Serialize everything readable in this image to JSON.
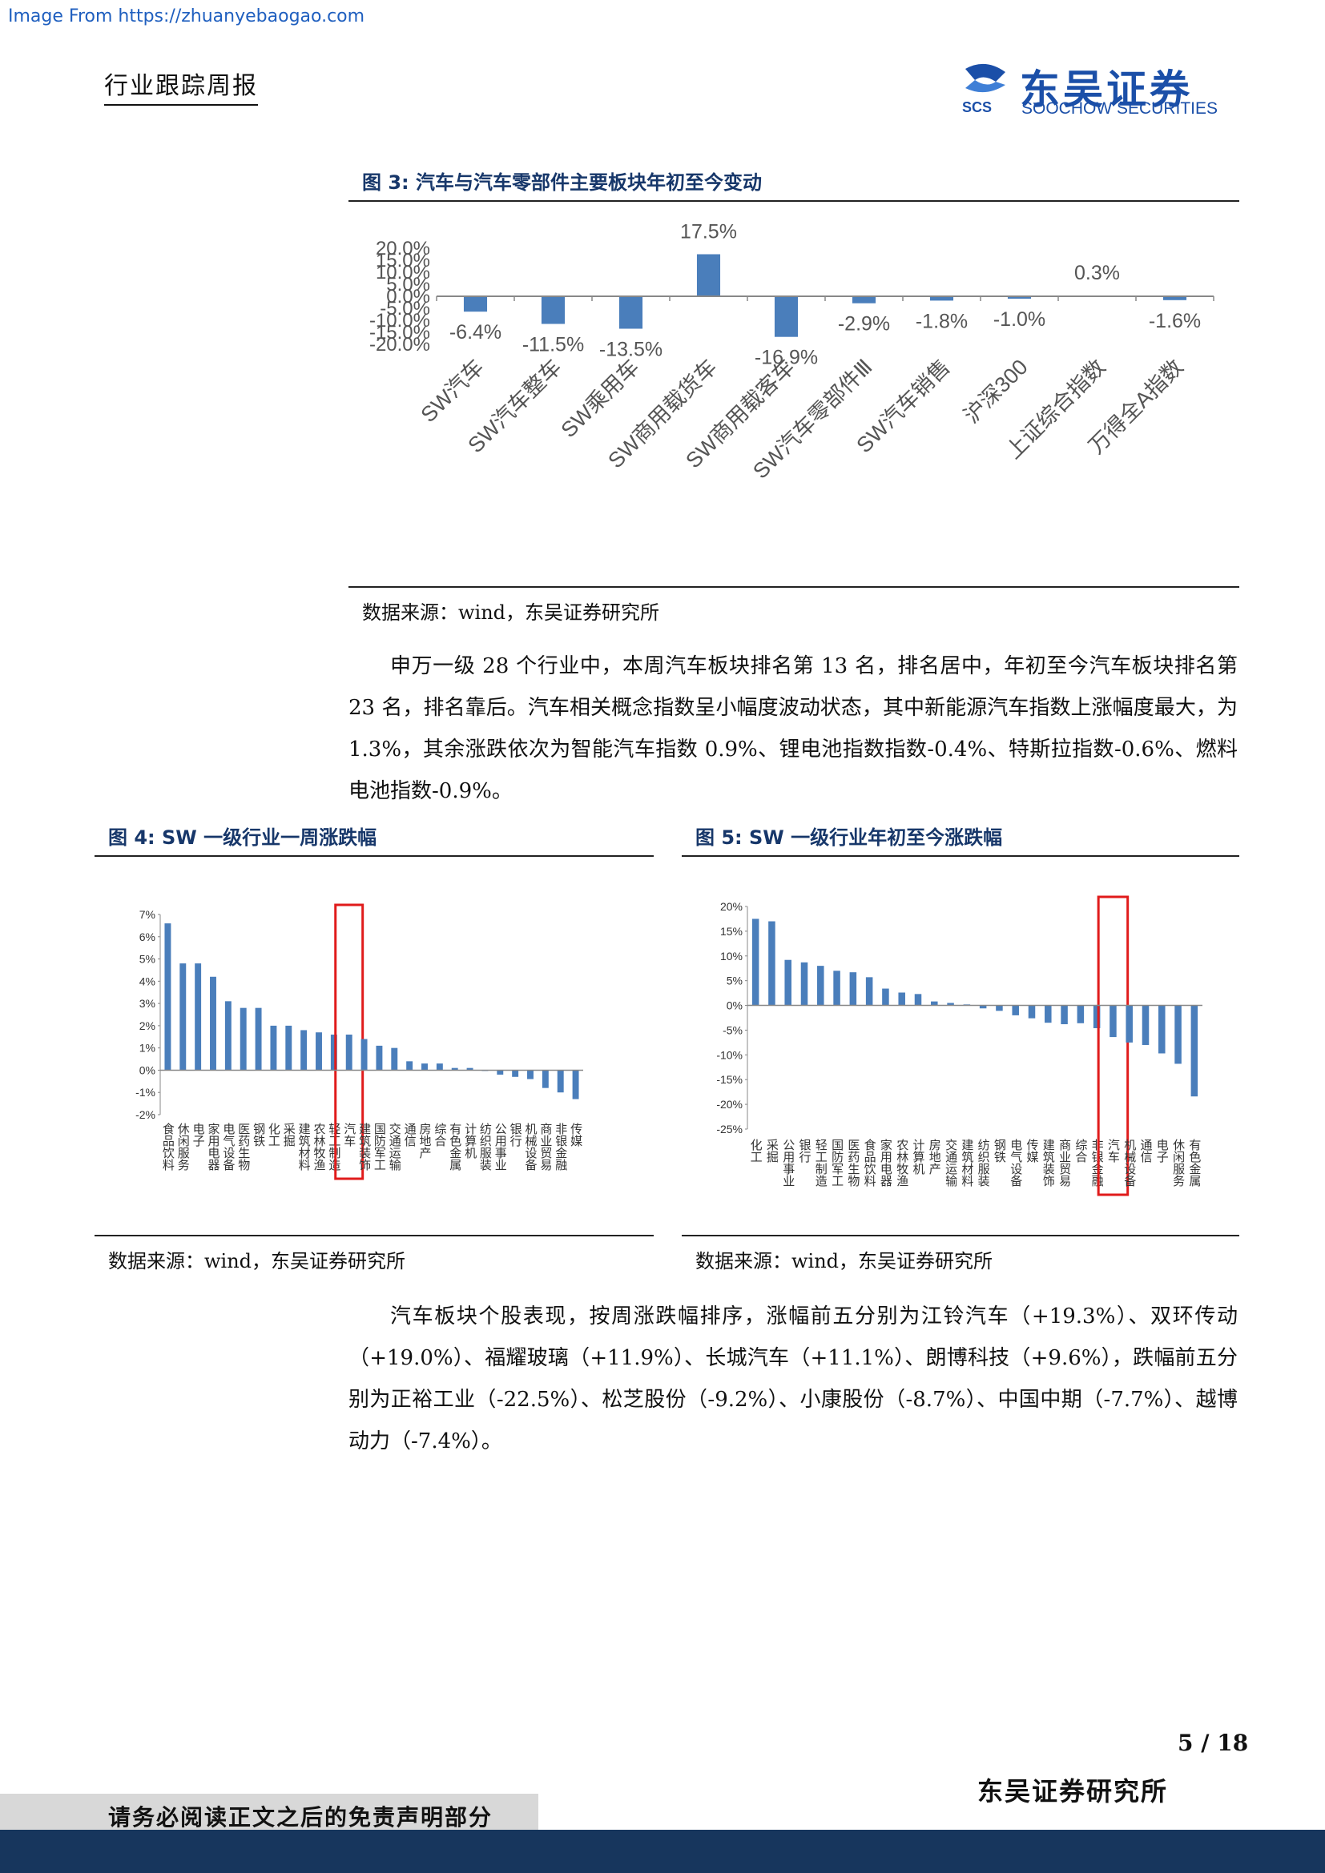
{
  "header": {
    "source_watermark": "Image From https://zhuanyebaogao.com",
    "report_type": "行业跟踪周报",
    "logo_cn": "东吴证券",
    "logo_en": "SOOCHOW SECURITIES",
    "logo_mark_text": "SCS"
  },
  "figure3": {
    "title": "图 3:  汽车与汽车零部件主要板块年初至今变动",
    "source": "数据来源：wind，东吴证券研究所"
  },
  "figure4": {
    "title": "图 4:    SW 一级行业一周涨跌幅",
    "source": "数据来源：wind，东吴证券研究所"
  },
  "figure5": {
    "title": "图 5:    SW 一级行业年初至今涨跌幅",
    "source": "数据来源：wind，东吴证券研究所"
  },
  "body": {
    "paragraph1": "申万一级 28 个行业中，本周汽车板块排名第 13 名，排名居中，年初至今汽车板块排名第 23 名，排名靠后。汽车相关概念指数呈小幅度波动状态，其中新能源汽车指数上涨幅度最大，为 1.3%，其余涨跌依次为智能汽车指数 0.9%、锂电池指数指数-0.4%、特斯拉指数-0.6%、燃料电池指数-0.9%。",
    "paragraph2": "汽车板块个股表现，按周涨跌幅排序，涨幅前五分别为江铃汽车（+19.3%）、双环传动（+19.0%）、福耀玻璃（+11.9%）、长城汽车（+11.1%）、朗博科技（+9.6%），跌幅前五分别为正裕工业（-22.5%）、松芝股份（-9.2%）、小康股份（-8.7%）、中国中期（-7.7%）、越博动力（-7.4%）。"
  },
  "footer": {
    "page_number": "5 / 18",
    "institute": "东吴证券研究所",
    "disclaimer": "请务必阅读正文之后的免责声明部分"
  },
  "chart_data": [
    {
      "id": "figure3",
      "type": "bar",
      "categories": [
        "SW汽车",
        "SW汽车整车",
        "SW乘用车",
        "SW商用载货车",
        "SW商用载客车",
        "SW汽车零部件Ⅲ",
        "SW汽车销售",
        "沪深300",
        "上证综合指数",
        "万得全A指数"
      ],
      "values": [
        -6.4,
        -11.5,
        -13.5,
        17.5,
        -16.9,
        -2.9,
        -1.8,
        -1.0,
        0.3,
        -1.6
      ],
      "data_labels": [
        "-6.4%",
        "-11.5%",
        "-13.5%",
        "17.5%",
        "-16.9%",
        "-2.9%",
        "-1.8%",
        "-1.0%",
        "0.3%",
        "-1.6%"
      ],
      "ylim": [
        -20,
        20
      ],
      "yticks": [
        "20.0%",
        "15.0%",
        "10.0%",
        "5.0%",
        "0.0%",
        "-5.0%",
        "-10.0%",
        "-15.0%",
        "-20.0%"
      ],
      "ytick_values": [
        20,
        15,
        10,
        5,
        0,
        -5,
        -10,
        -15,
        -20
      ],
      "bar_color": "#4a7ebb",
      "grid": false,
      "legend": "none"
    },
    {
      "id": "figure4",
      "type": "bar",
      "categories": [
        "食品饮料",
        "休闲服务",
        "电子",
        "家用电器",
        "电气设备",
        "医药生物",
        "钢铁",
        "化工",
        "采掘",
        "建筑材料",
        "农林牧渔",
        "轻工制造",
        "汽车",
        "建筑装饰",
        "国防军工",
        "交通运输",
        "通信",
        "房地产",
        "综合",
        "有色金属",
        "计算机",
        "纺织服装",
        "公用事业",
        "银行",
        "机械设备",
        "商业贸易",
        "非银金融",
        "传媒"
      ],
      "values": [
        6.6,
        4.8,
        4.8,
        4.2,
        3.1,
        2.8,
        2.8,
        2.0,
        2.0,
        1.8,
        1.7,
        1.6,
        1.6,
        1.4,
        1.1,
        1.0,
        0.4,
        0.3,
        0.3,
        0.1,
        0.1,
        0.0,
        -0.2,
        -0.3,
        -0.4,
        -0.8,
        -1.0,
        -1.3
      ],
      "ylim": [
        -2,
        7
      ],
      "yticks": [
        "7%",
        "6%",
        "5%",
        "4%",
        "3%",
        "2%",
        "1%",
        "0%",
        "-1%",
        "-2%"
      ],
      "ytick_values": [
        7,
        6,
        5,
        4,
        3,
        2,
        1,
        0,
        -1,
        -2
      ],
      "highlight": "汽车",
      "bar_color": "#4a7ebb",
      "highlight_color": "#e01b1b"
    },
    {
      "id": "figure5",
      "type": "bar",
      "categories": [
        "化工",
        "采掘",
        "公用事业",
        "银行",
        "轻工制造",
        "国防军工",
        "医药生物",
        "食品饮料",
        "家用电器",
        "农林牧渔",
        "计算机",
        "房地产",
        "交通运输",
        "建筑材料",
        "纺织服装",
        "钢铁",
        "电气设备",
        "传媒",
        "建筑装饰",
        "商业贸易",
        "综合",
        "非银金融",
        "汽车",
        "机械设备",
        "通信",
        "电子",
        "休闲服务",
        "有色金属"
      ],
      "values": [
        17.5,
        17.0,
        9.2,
        8.7,
        8.0,
        7.0,
        6.7,
        5.7,
        3.4,
        2.6,
        2.3,
        0.8,
        0.5,
        0.2,
        -0.6,
        -1.1,
        -2.0,
        -2.6,
        -3.5,
        -3.8,
        -3.6,
        -4.6,
        -6.4,
        -7.5,
        -8.0,
        -9.7,
        -11.8,
        -18.4
      ],
      "ylim": [
        -25,
        20
      ],
      "yticks": [
        "20%",
        "15%",
        "10%",
        "5%",
        "0%",
        "-5%",
        "-10%",
        "-15%",
        "-20%",
        "-25%"
      ],
      "ytick_values": [
        20,
        15,
        10,
        5,
        0,
        -5,
        -10,
        -15,
        -20,
        -25
      ],
      "highlight": "汽车",
      "bar_color": "#4a7ebb",
      "highlight_color": "#e01b1b"
    }
  ]
}
